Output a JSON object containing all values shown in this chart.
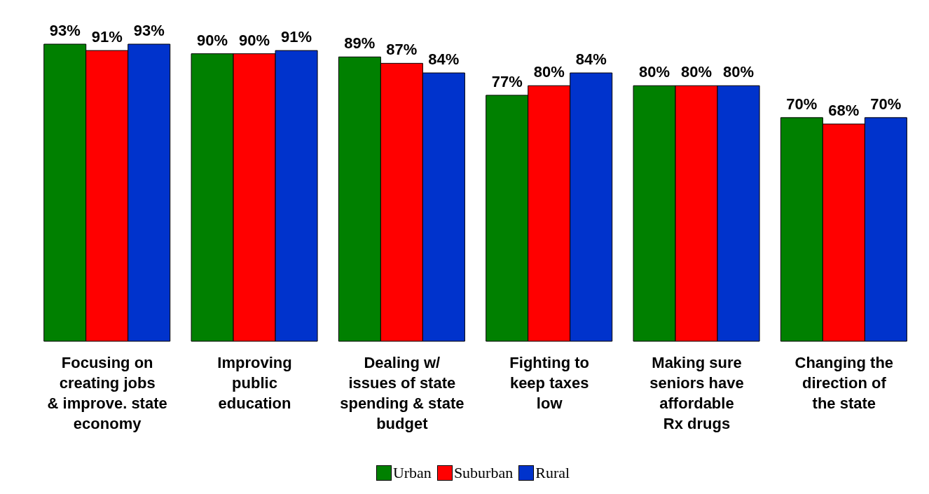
{
  "chart_data": {
    "type": "bar",
    "categories": [
      "Focusing on\ncreating jobs\n& improve. state\neconomy",
      "Improving\npublic\neducation",
      "Dealing w/\nissues of state\nspending & state\nbudget",
      "Fighting to\nkeep taxes\nlow",
      "Making sure\nseniors have\naffordable\nRx drugs",
      "Changing the\ndirection of\nthe state"
    ],
    "series": [
      {
        "name": "Urban",
        "color": "#008000",
        "values": [
          93,
          90,
          89,
          77,
          80,
          70
        ],
        "value_labels": [
          "93%",
          "90%",
          "89%",
          "77%",
          "80%",
          "70%"
        ]
      },
      {
        "name": "Suburban",
        "color": "#ff0000",
        "values": [
          91,
          90,
          87,
          80,
          80,
          68
        ],
        "value_labels": [
          "91%",
          "90%",
          "87%",
          "80%",
          "80%",
          "68%"
        ]
      },
      {
        "name": "Rural",
        "color": "#0033cc",
        "values": [
          93,
          91,
          84,
          84,
          80,
          70
        ],
        "value_labels": [
          "93%",
          "91%",
          "84%",
          "84%",
          "80%",
          "70%"
        ]
      }
    ],
    "legend": "bottom"
  }
}
